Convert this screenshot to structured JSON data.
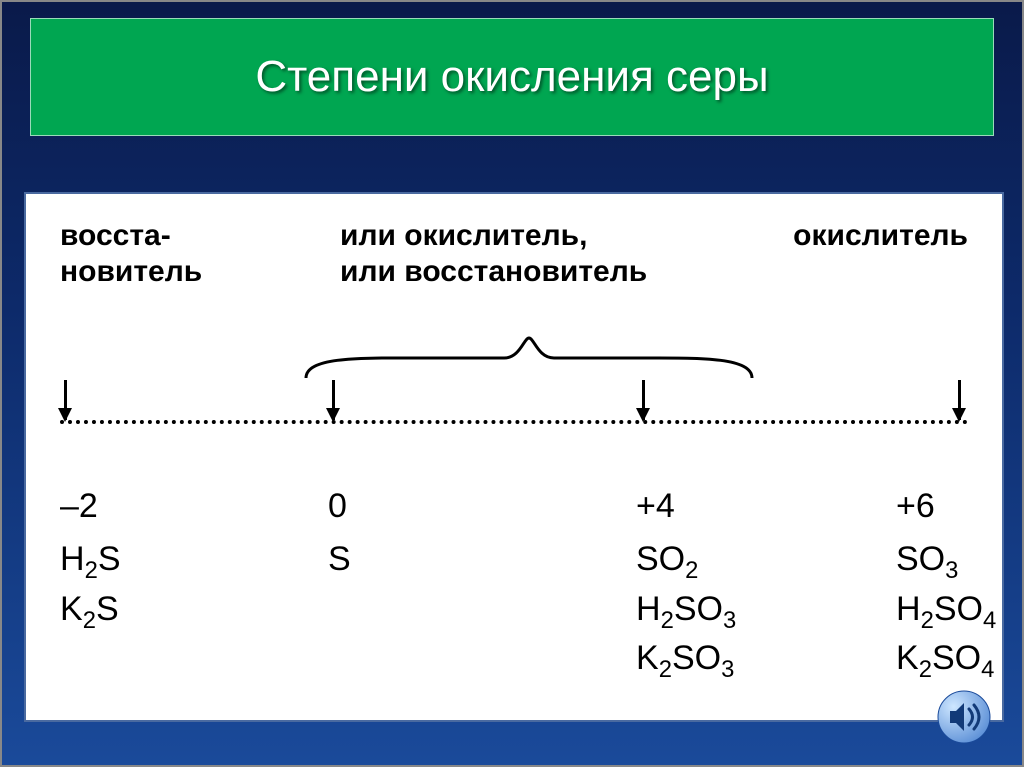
{
  "slide": {
    "title": "Степени окисления серы",
    "background_gradient": [
      "#0a1a4a",
      "#0d2a6a",
      "#1a4a9a"
    ],
    "title_bar_color": "#00a651",
    "title_text_color": "#ffffff",
    "title_fontsize": 44
  },
  "diagram": {
    "type": "axis-table",
    "panel_bg": "#ffffff",
    "panel_border": "#4a6aa0",
    "label_fontsize": 30,
    "value_fontsize": 34,
    "text_color": "#000000",
    "dot_line_color": "#000000",
    "labels": {
      "left": "восста-\nновитель",
      "middle": "или окислитель,\nили восстановитель",
      "right": "окислитель"
    },
    "brace_span_cols": [
      1,
      2
    ],
    "columns": [
      {
        "state": "–2",
        "formulas_html": [
          "H<sub>2</sub>S",
          "K<sub>2</sub>S"
        ]
      },
      {
        "state": "0",
        "formulas_html": [
          "S"
        ]
      },
      {
        "state": "+4",
        "formulas_html": [
          "SO<sub>2</sub>",
          "H<sub>2</sub>SO<sub>3</sub>",
          "K<sub>2</sub>SO<sub>3</sub>"
        ]
      },
      {
        "state": "+6",
        "formulas_html": [
          "SO<sub>3</sub>",
          "H<sub>2</sub>SO<sub>4</sub>",
          "K<sub>2</sub>SO<sub>4</sub>"
        ]
      }
    ]
  },
  "icons": {
    "sound": "sound-icon"
  }
}
